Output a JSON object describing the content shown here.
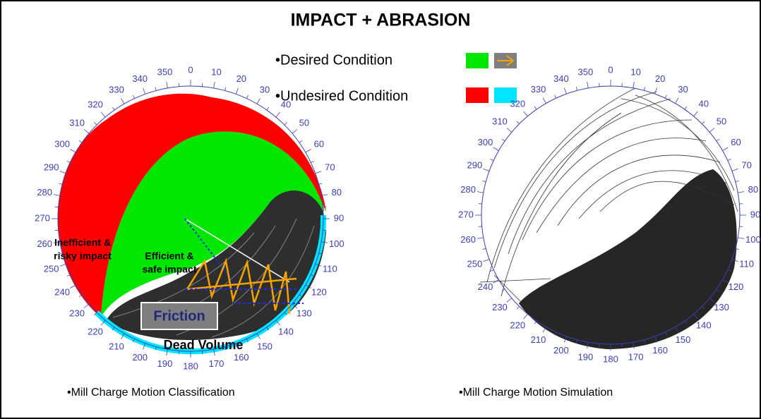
{
  "title": "IMPACT + ABRASION",
  "legend": {
    "desired": "•Desired Condition",
    "undesired": "•Undesired Condition"
  },
  "left_diagram": {
    "dial_labels": [
      "0",
      "10",
      "20",
      "30",
      "40",
      "50",
      "60",
      "70",
      "80",
      "90",
      "100",
      "110",
      "120",
      "130",
      "140",
      "150",
      "160",
      "170",
      "180",
      "190",
      "200",
      "210",
      "220",
      "230",
      "240",
      "250",
      "260",
      "270",
      "280",
      "290",
      "300",
      "310",
      "320",
      "330",
      "340",
      "350"
    ],
    "inefficient_label": [
      "Inefficient &",
      "risky impact"
    ],
    "efficient_label": [
      "Efficient &",
      "safe impact"
    ],
    "friction_label": "Friction",
    "dead_volume_label": "Dead Volume",
    "caption": "•Mill Charge Motion Classification"
  },
  "right_diagram": {
    "dial_labels": [
      "0",
      "10",
      "20",
      "30",
      "40",
      "50",
      "60",
      "70",
      "80",
      "90",
      "100",
      "110",
      "120",
      "130",
      "140",
      "150",
      "160",
      "170",
      "180",
      "190",
      "200",
      "210",
      "220",
      "230",
      "240",
      "250",
      "260",
      "270",
      "280",
      "290",
      "300",
      "310",
      "320",
      "330",
      "340",
      "350"
    ],
    "caption": "•Mill Charge Motion Simulation"
  }
}
